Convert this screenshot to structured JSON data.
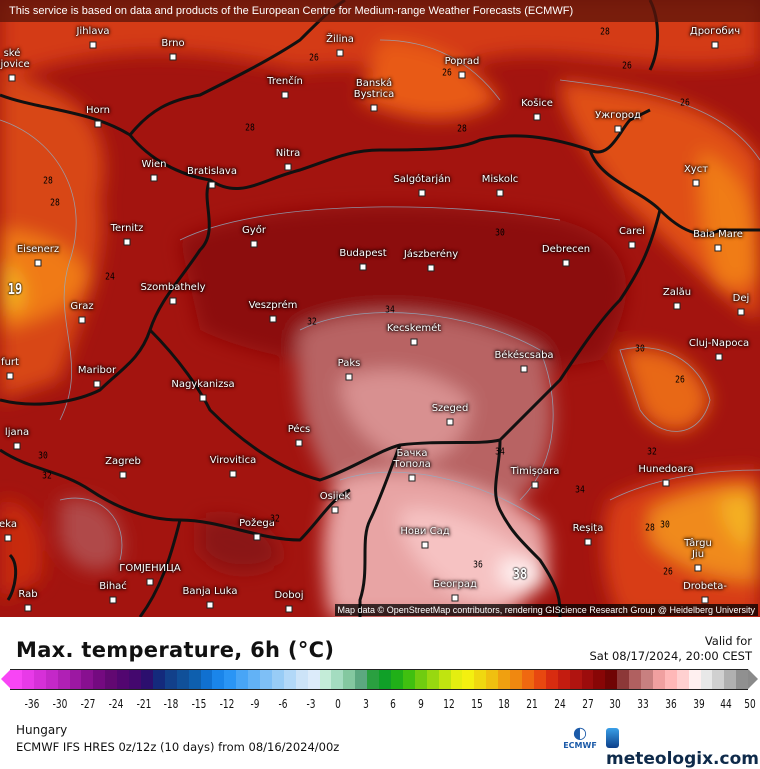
{
  "banner": "This service is based on data and products of the European Centre for Medium-range Weather Forecasts (ECMWF)",
  "attribution": "Map data © OpenStreetMap contributors, rendering GIScience Research Group @ Heidelberg University",
  "cities": [
    "Jihlava",
    "Brno",
    "Žilina",
    "Poprad",
    "Дрогобич",
    "Trenčín",
    "Banská\nBystrica",
    "Košice",
    "Ужгород",
    "Horn",
    "Nitra",
    "Wien",
    "Bratislava",
    "Salgótarján",
    "Miskolc",
    "Хуст",
    "Ternitz",
    "Győr",
    "Budapest",
    "Jászberény",
    "Debrecen",
    "Carei",
    "Baia Mare",
    "Eisenerz",
    "Zalău",
    "Szombathely",
    "Veszprém",
    "Graz",
    "Dej",
    "Kecskemét",
    "Cluj-Napoca",
    "Maribor",
    "Paks",
    "Békéscsaba",
    "Nagykanizsa",
    "Szeged",
    "Pécs",
    "Zagreb",
    "Virovitica",
    "Бачка\nТопола",
    "Timișoara",
    "Hunedoara",
    "Osijek",
    "Požega",
    "Нови Сад",
    "Reșița",
    "Târgu\nJiu",
    "ГОМЈЕНИЦА",
    "Bihać",
    "Banja Luka",
    "Doboj",
    "Београд",
    "Rab",
    "Drobeta-",
    "ljana",
    "furt",
    "eka",
    "ské\nějovice"
  ],
  "contour_labels": [
    "28",
    "26",
    "26",
    "26",
    "26",
    "28",
    "28",
    "28",
    "28",
    "30",
    "24",
    "19",
    "32",
    "34",
    "30",
    "26",
    "30",
    "32",
    "34",
    "32",
    "34",
    "28",
    "30",
    "26",
    "36",
    "38",
    "32"
  ],
  "legend": {
    "title": "Max. temperature, 6h (°C)",
    "valid_label": "Valid for",
    "valid_time": "Sat 08/17/2024, 20:00 CEST",
    "ticks": [
      "-36",
      "-30",
      "-27",
      "-24",
      "-21",
      "-18",
      "-15",
      "-12",
      "-9",
      "-6",
      "-3",
      "0",
      "3",
      "6",
      "9",
      "12",
      "15",
      "18",
      "21",
      "24",
      "27",
      "30",
      "33",
      "36",
      "39",
      "44",
      "50"
    ],
    "colors": [
      "#f845f5",
      "#e83ae8",
      "#d630d8",
      "#c428c8",
      "#b020b5",
      "#9c18a2",
      "#881090",
      "#740a80",
      "#620872",
      "#520670",
      "#44086e",
      "#2c0f6e",
      "#142a7c",
      "#12408a",
      "#105099",
      "#0e5fae",
      "#1070d0",
      "#1a85ea",
      "#2a95f5",
      "#48a5f6",
      "#62b2f6",
      "#7ebff6",
      "#98ccf6",
      "#b2d8f8",
      "#cce3f8",
      "#dcebfa",
      "#c4ecd8",
      "#a4dcc0",
      "#84c8a0",
      "#5ca880",
      "#2aa040",
      "#10a028",
      "#20b018",
      "#40c010",
      "#70cc10",
      "#98d810",
      "#c0e410",
      "#e4ee10",
      "#f4f010",
      "#f0d810",
      "#f0c010",
      "#f0a010",
      "#f08810",
      "#f06810",
      "#e84810",
      "#d82c10",
      "#c41c10",
      "#b01410",
      "#9c0c0c",
      "#880606",
      "#700404",
      "#8c3838",
      "#b06060",
      "#c88080",
      "#f0a0a0",
      "#ffb8b8",
      "#ffd0d0",
      "#fff0f0",
      "#e8e8e8",
      "#d0d0d0",
      "#b0b0b0",
      "#909090"
    ],
    "region": "Hungary",
    "model": "ECMWF IFS HRES 0z/12z (10 days) from  08/16/2024/00z",
    "ecmwf_label": "ECMWF",
    "brand": "meteologix.com"
  }
}
